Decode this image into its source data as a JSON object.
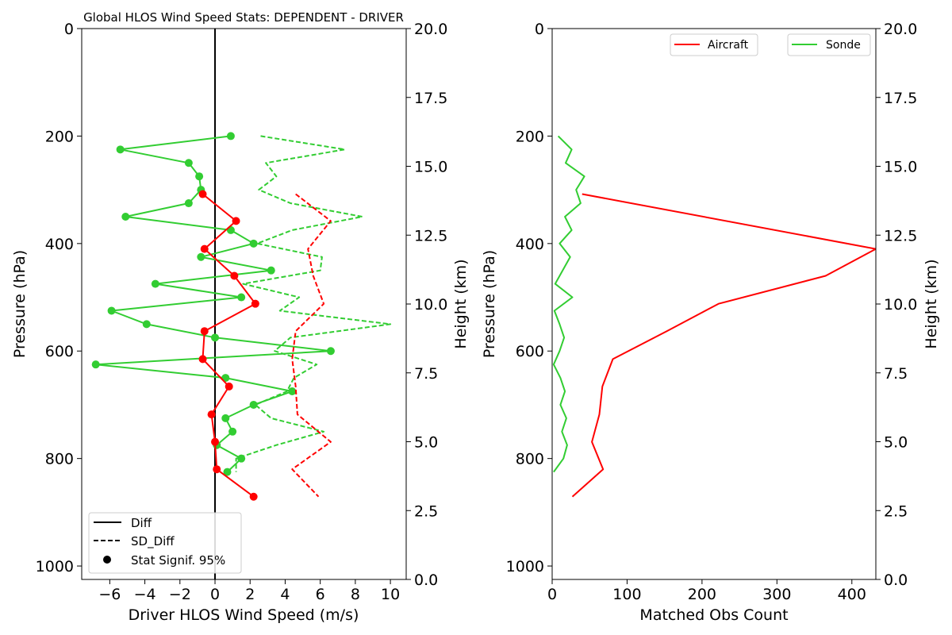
{
  "chart_data": [
    {
      "type": "line",
      "title": "Global HLOS Wind Speed Stats: DEPENDENT - DRIVER",
      "xlabel": "Driver HLOS Wind Speed (m/s)",
      "ylabel": "Pressure (hPa)",
      "ylabel_right": "Height (km)",
      "xlim": [
        -7.6,
        10.9
      ],
      "ylim": [
        0,
        1025
      ],
      "y_inverted": true,
      "ylim_right": [
        0,
        20
      ],
      "x_ticks": [
        -6,
        -4,
        -2,
        0,
        2,
        4,
        6,
        8,
        10
      ],
      "y_ticks": [
        0,
        200,
        400,
        600,
        800,
        1000
      ],
      "y_right_ticks": [
        "0.0",
        "2.5",
        "5.0",
        "7.5",
        "10.0",
        "12.5",
        "15.0",
        "17.5",
        "20.0"
      ],
      "zero_line": true,
      "legend": {
        "position": "lower left",
        "entries": [
          "Diff",
          "SD_Diff",
          "Stat Signif. 95%"
        ]
      },
      "series": [
        {
          "color": "#32cd32",
          "style": "solid",
          "markers": true,
          "points": [
            [
              0.9,
              200
            ],
            [
              -5.4,
              225
            ],
            [
              -1.5,
              250
            ],
            [
              -0.9,
              275
            ],
            [
              -0.8,
              300
            ],
            [
              -1.5,
              325
            ],
            [
              -5.1,
              350
            ],
            [
              0.9,
              375
            ],
            [
              2.2,
              400
            ],
            [
              -0.8,
              425
            ],
            [
              3.2,
              450
            ],
            [
              -3.4,
              475
            ],
            [
              1.5,
              500
            ],
            [
              -5.9,
              525
            ],
            [
              -3.9,
              550
            ],
            [
              0.0,
              575
            ],
            [
              6.6,
              600
            ],
            [
              -6.8,
              625
            ],
            [
              0.6,
              650
            ],
            [
              4.4,
              675
            ],
            [
              2.2,
              700
            ],
            [
              0.6,
              725
            ],
            [
              1.0,
              750
            ],
            [
              0.1,
              775
            ],
            [
              1.5,
              800
            ],
            [
              0.7,
              825
            ]
          ]
        },
        {
          "color": "#32cd32",
          "style": "dashed",
          "markers": false,
          "points": [
            [
              2.6,
              200
            ],
            [
              7.4,
              225
            ],
            [
              2.9,
              250
            ],
            [
              3.5,
              275
            ],
            [
              2.5,
              300
            ],
            [
              4.3,
              325
            ],
            [
              8.4,
              350
            ],
            [
              4.4,
              375
            ],
            [
              2.4,
              400
            ],
            [
              6.1,
              425
            ],
            [
              6.0,
              450
            ],
            [
              1.6,
              475
            ],
            [
              4.8,
              500
            ],
            [
              3.7,
              525
            ],
            [
              10.0,
              550
            ],
            [
              4.3,
              575
            ],
            [
              3.4,
              600
            ],
            [
              5.8,
              625
            ],
            [
              4.5,
              650
            ],
            [
              4.1,
              675
            ],
            [
              2.3,
              700
            ],
            [
              3.2,
              725
            ],
            [
              6.2,
              750
            ],
            [
              3.5,
              775
            ],
            [
              1.2,
              800
            ],
            [
              1.2,
              825
            ]
          ]
        },
        {
          "color": "#ff0000",
          "style": "solid",
          "markers": true,
          "points": [
            [
              -0.7,
              308
            ],
            [
              1.2,
              358
            ],
            [
              -0.6,
              410
            ],
            [
              1.1,
              460
            ],
            [
              2.3,
              512
            ],
            [
              -0.6,
              563
            ],
            [
              -0.7,
              615
            ],
            [
              0.8,
              666
            ],
            [
              -0.2,
              718
            ],
            [
              0.0,
              769
            ],
            [
              0.1,
              820
            ],
            [
              2.2,
              871
            ]
          ]
        },
        {
          "color": "#ff0000",
          "style": "dashed",
          "markers": false,
          "points": [
            [
              4.6,
              308
            ],
            [
              6.6,
              358
            ],
            [
              5.3,
              410
            ],
            [
              5.6,
              460
            ],
            [
              6.2,
              512
            ],
            [
              4.6,
              563
            ],
            [
              4.4,
              615
            ],
            [
              4.6,
              666
            ],
            [
              4.7,
              718
            ],
            [
              6.6,
              769
            ],
            [
              4.4,
              820
            ],
            [
              5.9,
              871
            ]
          ]
        }
      ]
    },
    {
      "type": "line",
      "title": "",
      "xlabel": "Matched Obs Count",
      "ylabel": "Pressure (hPa)",
      "ylabel_right": "Height (km)",
      "xlim": [
        0,
        432
      ],
      "ylim": [
        0,
        1025
      ],
      "y_inverted": true,
      "ylim_right": [
        0,
        20
      ],
      "x_ticks": [
        0,
        100,
        200,
        300,
        400
      ],
      "y_ticks": [
        0,
        200,
        400,
        600,
        800,
        1000
      ],
      "y_right_ticks": [
        "0.0",
        "2.5",
        "5.0",
        "7.5",
        "10.0",
        "12.5",
        "15.0",
        "17.5",
        "20.0"
      ],
      "legend": {
        "position": "top-right",
        "entries": [
          "Aircraft",
          "Sonde"
        ]
      },
      "series": [
        {
          "name": "Aircraft",
          "color": "#ff0000",
          "style": "solid",
          "points": [
            [
              40,
              308
            ],
            [
              432,
              410
            ],
            [
              365,
              460
            ],
            [
              222,
              512
            ],
            [
              153,
              563
            ],
            [
              81,
              615
            ],
            [
              67,
              666
            ],
            [
              63,
              718
            ],
            [
              53,
              769
            ],
            [
              68,
              820
            ],
            [
              27,
              871
            ]
          ]
        },
        {
          "name": "Sonde",
          "color": "#32cd32",
          "style": "solid",
          "points": [
            [
              8,
              200
            ],
            [
              26,
              225
            ],
            [
              18,
              250
            ],
            [
              43,
              275
            ],
            [
              32,
              300
            ],
            [
              38,
              325
            ],
            [
              17,
              350
            ],
            [
              26,
              375
            ],
            [
              10,
              400
            ],
            [
              24,
              425
            ],
            [
              14,
              450
            ],
            [
              4,
              475
            ],
            [
              27,
              500
            ],
            [
              3,
              525
            ],
            [
              10,
              550
            ],
            [
              16,
              575
            ],
            [
              10,
              600
            ],
            [
              2,
              625
            ],
            [
              11,
              650
            ],
            [
              17,
              675
            ],
            [
              11,
              700
            ],
            [
              19,
              725
            ],
            [
              13,
              750
            ],
            [
              20,
              775
            ],
            [
              15,
              800
            ],
            [
              2,
              825
            ]
          ]
        }
      ]
    }
  ]
}
